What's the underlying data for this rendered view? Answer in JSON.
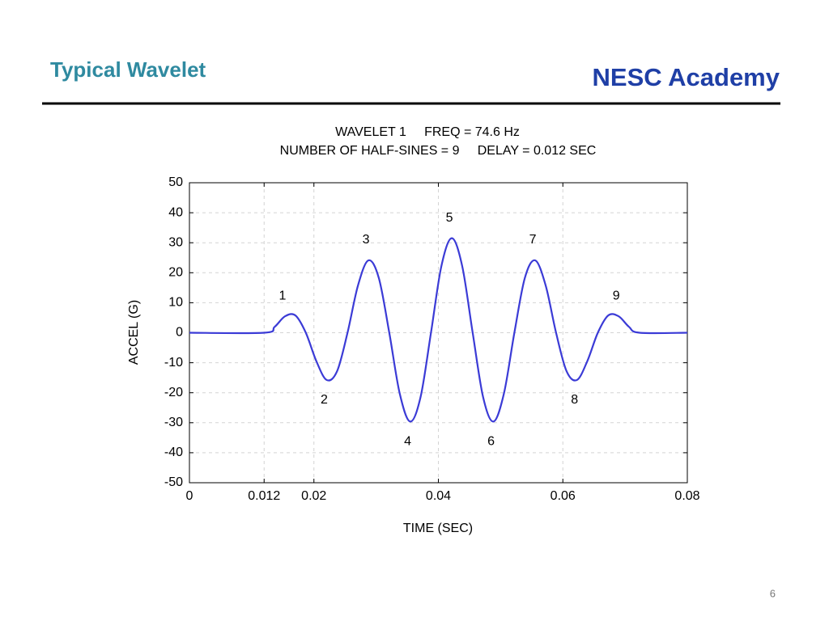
{
  "header": {
    "title": "Typical Wavelet",
    "brand": "NESC Academy"
  },
  "page_number": "6",
  "chart_data": {
    "type": "line",
    "title": "WAVELET 1     FREQ = 74.6 Hz",
    "subtitle": "NUMBER OF HALF-SINES = 9     DELAY = 0.012 SEC",
    "x_label": "TIME (SEC)",
    "y_label": "ACCEL (G)",
    "x": [
      0,
      0.012,
      0.01368,
      0.01535,
      0.01703,
      0.0187,
      0.02038,
      0.02205,
      0.02373,
      0.0254,
      0.02708,
      0.02876,
      0.03043,
      0.03211,
      0.03378,
      0.03546,
      0.03713,
      0.03881,
      0.04048,
      0.04216,
      0.04383,
      0.04551,
      0.04719,
      0.04886,
      0.05054,
      0.05221,
      0.05389,
      0.05556,
      0.05724,
      0.05891,
      0.06059,
      0.06227,
      0.06394,
      0.06562,
      0.06729,
      0.06897,
      0.07064,
      0.07232,
      0.08
    ],
    "series": [
      {
        "name": "WAVELET 1",
        "color": "#3b3bd6",
        "values": [
          0,
          0,
          1.94,
          5.47,
          5.76,
          0,
          -9.41,
          -15.75,
          -12.78,
          0,
          15.75,
          24.13,
          18.25,
          0,
          -20.19,
          -29.6,
          -21.51,
          0,
          22.19,
          31.5,
          22.19,
          0,
          -21.51,
          -29.6,
          -20.19,
          0,
          18.25,
          24.13,
          15.75,
          0,
          -12.78,
          -15.75,
          -9.41,
          0,
          5.76,
          5.47,
          1.94,
          0,
          0
        ]
      }
    ],
    "annotations": [
      "1",
      "2",
      "3",
      "4",
      "5",
      "6",
      "7",
      "8",
      "9"
    ],
    "xlim": [
      0,
      0.08
    ],
    "xticks": [
      0,
      0.012,
      0.02,
      0.04,
      0.06,
      0.08
    ],
    "ylim": [
      -50,
      50
    ],
    "yticks": [
      -50,
      -40,
      -30,
      -20,
      -10,
      0,
      10,
      20,
      30,
      40,
      50
    ],
    "grid": true
  }
}
